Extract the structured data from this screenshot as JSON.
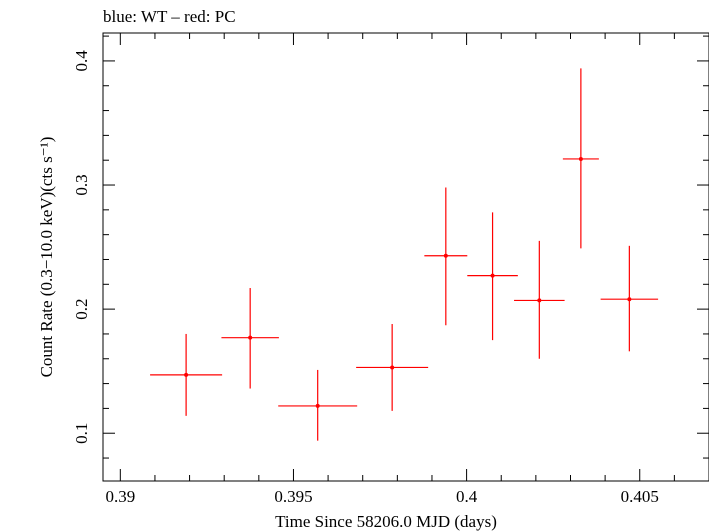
{
  "chart_data": {
    "type": "scatter",
    "title": "blue: WT – red: PC",
    "xlabel": "Time Since 58206.0 MJD (days)",
    "ylabel": "Count Rate (0.3−10.0 keV)(cts s⁻¹)",
    "xlim": [
      0.3895,
      0.407
    ],
    "ylim": [
      0.0615,
      0.4225
    ],
    "xticks": [
      0.39,
      0.395,
      0.4,
      0.405
    ],
    "xtick_labels": [
      "0.39",
      "0.395",
      "0.4",
      "0.405"
    ],
    "yticks": [
      0.1,
      0.2,
      0.3,
      0.4
    ],
    "ytick_labels": [
      "0.1",
      "0.2",
      "0.3",
      "0.4"
    ],
    "grid": false,
    "series": [
      {
        "color": "#ff0000",
        "points": [
          {
            "x": 0.3919,
            "y": 0.147,
            "xerr": 0.00104,
            "ylo": 0.114,
            "yhi": 0.18
          },
          {
            "x": 0.39375,
            "y": 0.177,
            "xerr": 0.00083,
            "ylo": 0.136,
            "yhi": 0.217
          },
          {
            "x": 0.3957,
            "y": 0.122,
            "xerr": 0.00114,
            "ylo": 0.094,
            "yhi": 0.151
          },
          {
            "x": 0.39785,
            "y": 0.153,
            "xerr": 0.00104,
            "ylo": 0.118,
            "yhi": 0.188
          },
          {
            "x": 0.3994,
            "y": 0.243,
            "xerr": 0.00062,
            "ylo": 0.187,
            "yhi": 0.298
          },
          {
            "x": 0.40075,
            "y": 0.227,
            "xerr": 0.00073,
            "ylo": 0.175,
            "yhi": 0.278
          },
          {
            "x": 0.4021,
            "y": 0.207,
            "xerr": 0.00073,
            "ylo": 0.16,
            "yhi": 0.255
          },
          {
            "x": 0.4033,
            "y": 0.321,
            "xerr": 0.00052,
            "ylo": 0.249,
            "yhi": 0.394
          },
          {
            "x": 0.4047,
            "y": 0.208,
            "xerr": 0.00083,
            "ylo": 0.166,
            "yhi": 0.251
          }
        ]
      }
    ]
  }
}
